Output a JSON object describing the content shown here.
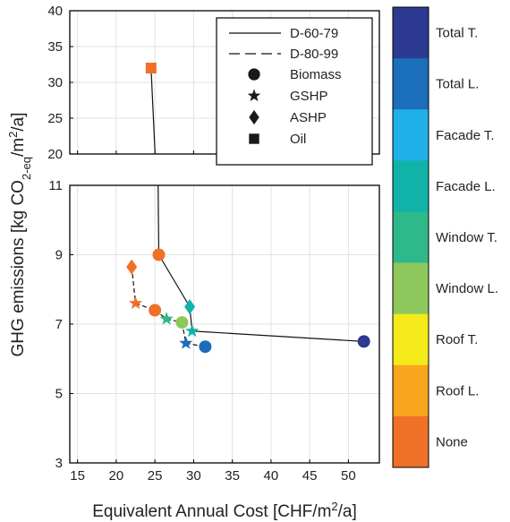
{
  "chart_data": {
    "type": "scatter",
    "xlabel": "Equivalent Annual Cost [CHF/m²/a]",
    "ylabel": "GHG emissions [kg CO2-eq/m2/a]",
    "xlim": [
      14,
      54
    ],
    "x_ticks": [
      15,
      20,
      25,
      30,
      35,
      40,
      45,
      50
    ],
    "upper_panel": {
      "ylim": [
        20,
        40
      ],
      "y_ticks": [
        20,
        25,
        30,
        35,
        40
      ]
    },
    "lower_panel": {
      "ylim": [
        3,
        11
      ],
      "y_ticks": [
        3,
        5,
        7,
        9,
        11
      ]
    },
    "grid": true,
    "legend": {
      "placement": "top-right",
      "line_entries": [
        {
          "label": "D-60-79",
          "style": "solid"
        },
        {
          "label": "D-80-99",
          "style": "dashed"
        }
      ],
      "marker_entries": [
        {
          "label": "Biomass",
          "marker": "circle"
        },
        {
          "label": "GSHP",
          "marker": "star"
        },
        {
          "label": "ASHP",
          "marker": "diamond"
        },
        {
          "label": "Oil",
          "marker": "square"
        }
      ]
    },
    "colorbar": [
      {
        "label": "None",
        "color": "#f07028"
      },
      {
        "label": "Roof L.",
        "color": "#f9a51d"
      },
      {
        "label": "Roof T.",
        "color": "#f4ea1b"
      },
      {
        "label": "Window L.",
        "color": "#8ec85c"
      },
      {
        "label": "Window T.",
        "color": "#2fb88a"
      },
      {
        "label": "Facade L.",
        "color": "#11b3a9"
      },
      {
        "label": "Facade T.",
        "color": "#1eb0e6"
      },
      {
        "label": "Total L.",
        "color": "#1b6eb9"
      },
      {
        "label": "Total T.",
        "color": "#2c3a92"
      }
    ],
    "series": [
      {
        "name": "D-60-79",
        "line": "solid",
        "points": [
          {
            "x": 24.5,
            "y": 32.0,
            "marker": "square",
            "level": "None"
          },
          {
            "x": 25.5,
            "y": 9.0,
            "marker": "circle",
            "level": "None"
          },
          {
            "x": 29.5,
            "y": 7.5,
            "marker": "diamond",
            "level": "Facade L."
          },
          {
            "x": 29.8,
            "y": 6.8,
            "marker": "star",
            "level": "Facade L."
          },
          {
            "x": 52.0,
            "y": 6.5,
            "marker": "circle",
            "level": "Total T."
          }
        ]
      },
      {
        "name": "D-80-99",
        "line": "dashed",
        "points": [
          {
            "x": 22.0,
            "y": 8.65,
            "marker": "diamond",
            "level": "None"
          },
          {
            "x": 22.5,
            "y": 7.6,
            "marker": "star",
            "level": "None"
          },
          {
            "x": 25.0,
            "y": 7.4,
            "marker": "circle",
            "level": "None"
          },
          {
            "x": 26.5,
            "y": 7.15,
            "marker": "star",
            "level": "Window T."
          },
          {
            "x": 28.5,
            "y": 7.05,
            "marker": "circle",
            "level": "Window L."
          },
          {
            "x": 29.0,
            "y": 6.45,
            "marker": "star",
            "level": "Total L."
          },
          {
            "x": 31.5,
            "y": 6.35,
            "marker": "circle",
            "level": "Total L."
          }
        ]
      }
    ]
  }
}
